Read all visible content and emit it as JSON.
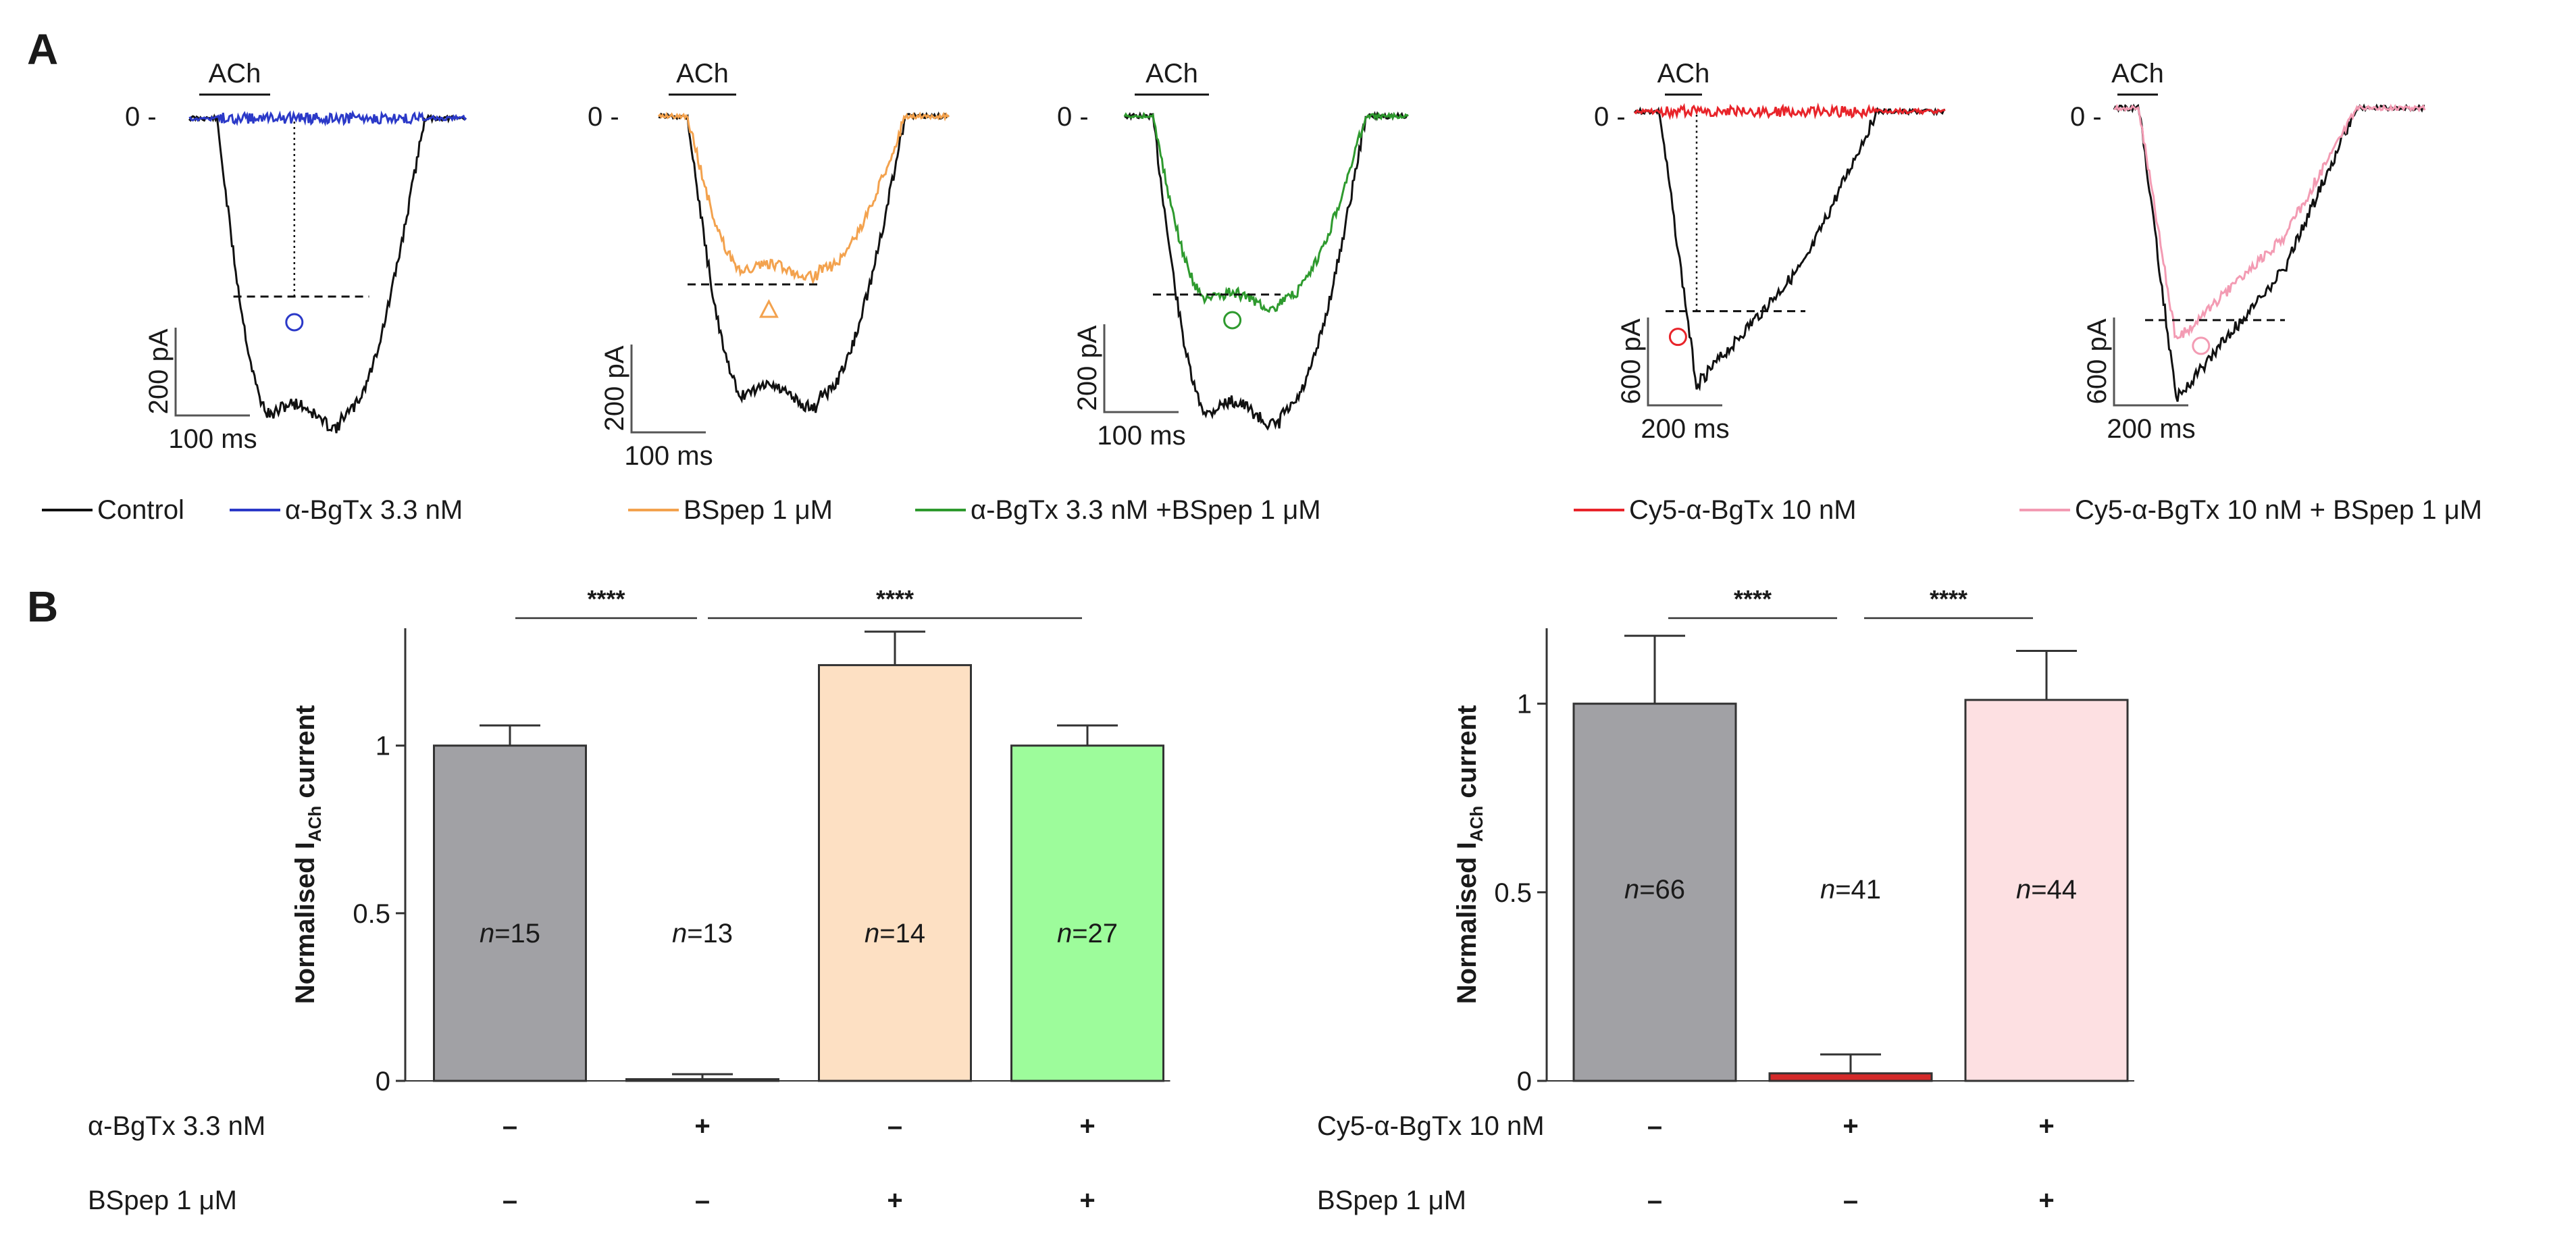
{
  "panel_labels": {
    "a": "A",
    "b": "B"
  },
  "panel_a": {
    "stim_label": "ACh",
    "zero_label": "0",
    "traces": [
      {
        "id": "t1",
        "scale_y": "200 pA",
        "scale_x": "100 ms",
        "control_peak": 1.0,
        "treated_peak": 0.0,
        "treated_color": "#2b39c8",
        "marker": "circle",
        "marker_color": "#2b39c8"
      },
      {
        "id": "t2",
        "scale_y": "200 pA",
        "scale_x": "100 ms",
        "control_peak": 1.0,
        "treated_peak": 0.55,
        "treated_color": "#f3a24e",
        "marker": "triangle",
        "marker_color": "#f3a24e"
      },
      {
        "id": "t3",
        "scale_y": "200 pA",
        "scale_x": "100 ms",
        "control_peak": 1.0,
        "treated_peak": 0.62,
        "treated_color": "#2e9a2e",
        "marker": "circle",
        "marker_color": "#2e9a2e"
      },
      {
        "id": "t4",
        "scale_y": "600 pA",
        "scale_x": "200 ms",
        "control_peak": 1.0,
        "treated_peak": 0.0,
        "treated_color": "#e8242a",
        "marker": "circle",
        "marker_color": "#e8242a"
      },
      {
        "id": "t5",
        "scale_y": "600 pA",
        "scale_x": "200 ms",
        "control_peak": 1.0,
        "treated_peak": 0.8,
        "treated_color": "#f39bb3",
        "marker": "circle",
        "marker_color": "#f39bb3"
      }
    ],
    "legend": [
      {
        "label": "Control",
        "color": "#111111"
      },
      {
        "label": "α-BgTx 3.3 nM",
        "color": "#2b39c8"
      },
      {
        "label": "BSpep 1 μM",
        "color": "#f3a24e"
      },
      {
        "label": "α-BgTx 3.3 nM +BSpep 1 μM",
        "color": "#2e9a2e"
      },
      {
        "label": "Cy5-α-BgTx 10 nM",
        "color": "#e8242a"
      },
      {
        "label": "Cy5-α-BgTx 10 nM + BSpep 1 μM",
        "color": "#f39bb3"
      }
    ]
  },
  "chart_data": [
    {
      "type": "bar",
      "ylabel": "Normalised I",
      "ylabel_sub": "ACh",
      "ylabel_tail": " current",
      "ylim": [
        0,
        1.35
      ],
      "yticks": [
        0,
        0.5,
        1
      ],
      "ytick_labels": [
        "0",
        "0.5",
        "1"
      ],
      "categories": [
        "1",
        "2",
        "3",
        "4"
      ],
      "values": [
        1.0,
        0.005,
        1.24,
        1.0
      ],
      "errors": [
        0.06,
        0.015,
        0.1,
        0.06
      ],
      "colors": [
        "#a1a1a5",
        "#ffffff",
        "#fde0c3",
        "#9dfc9b"
      ],
      "n_prefix": "n",
      "n_values": [
        "=15",
        "=13",
        "=14",
        "=27"
      ],
      "significance": [
        {
          "from": 0,
          "to": 1,
          "label": "****"
        },
        {
          "from": 1,
          "to": 3,
          "label": "****"
        }
      ],
      "conditions": [
        {
          "label": "α-BgTx 3.3 nM",
          "signs": [
            "–",
            "+",
            "–",
            "+"
          ]
        },
        {
          "label": "BSpep 1 μM",
          "signs": [
            "–",
            "–",
            "+",
            "+"
          ]
        }
      ]
    },
    {
      "type": "bar",
      "ylabel": "Normalised I",
      "ylabel_sub": "ACh",
      "ylabel_tail": " current",
      "ylim": [
        0,
        1.2
      ],
      "yticks": [
        0,
        0.5,
        1
      ],
      "ytick_labels": [
        "0",
        "0.5",
        "1"
      ],
      "categories": [
        "1",
        "2",
        "3"
      ],
      "values": [
        1.0,
        0.02,
        1.01
      ],
      "errors": [
        0.18,
        0.05,
        0.13
      ],
      "colors": [
        "#a1a1a5",
        "#d42a2a",
        "#fde0e2"
      ],
      "n_prefix": "n",
      "n_values": [
        "=66",
        "=41",
        "=44"
      ],
      "significance": [
        {
          "from": 0,
          "to": 1,
          "label": "****"
        },
        {
          "from": 1,
          "to": 2,
          "label": "****"
        }
      ],
      "conditions": [
        {
          "label": "Cy5-α-BgTx 10 nM",
          "signs": [
            "–",
            "+",
            "+"
          ]
        },
        {
          "label": "BSpep 1 μM",
          "signs": [
            "–",
            "–",
            "+"
          ]
        }
      ]
    }
  ]
}
